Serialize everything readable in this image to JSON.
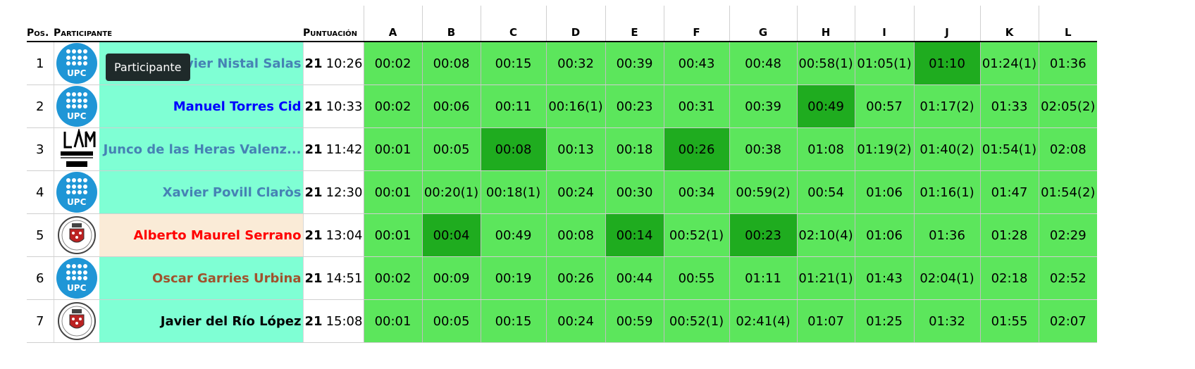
{
  "header": {
    "pos": "Pos.",
    "participant": "Participante",
    "score": "Puntuación",
    "problems": [
      "A",
      "B",
      "C",
      "D",
      "E",
      "F",
      "G",
      "H",
      "I",
      "J",
      "K",
      "L"
    ]
  },
  "tooltip": "Participante",
  "colors": {
    "solved": "#5ce65c",
    "first_solved": "#1fac1f",
    "upc_blue": "#1f96d6",
    "name_bg_green": "#7fffd4",
    "name_bg_beige": "#faebd7"
  },
  "rows": [
    {
      "pos": "1",
      "logo": "upc-logo",
      "name": "Javier Nistal Salas",
      "name_color": "#4682b4",
      "name_bg": "#7fffd4",
      "solved": "21",
      "time": "10:26",
      "cells": [
        "00:02",
        "00:08",
        "00:15",
        "00:32",
        "00:39",
        "00:43",
        "00:48",
        "00:58(1)",
        "01:05(1)",
        "01:10",
        "01:24(1)",
        "01:36"
      ],
      "first": [
        9
      ]
    },
    {
      "pos": "2",
      "logo": "upc-logo",
      "name": "Manuel Torres Cid",
      "name_color": "#0000ff",
      "name_bg": "#7fffd4",
      "solved": "21",
      "time": "10:33",
      "cells": [
        "00:02",
        "00:06",
        "00:11",
        "00:16(1)",
        "00:23",
        "00:31",
        "00:39",
        "00:49",
        "00:57",
        "01:17(2)",
        "01:33",
        "02:05(2)"
      ],
      "first": [
        7
      ]
    },
    {
      "pos": "3",
      "logo": "uam-logo",
      "name": "Junco de las Heras Valenz...",
      "name_color": "#4682b4",
      "name_bg": "#7fffd4",
      "solved": "21",
      "time": "11:42",
      "cells": [
        "00:01",
        "00:05",
        "00:08",
        "00:13",
        "00:18",
        "00:26",
        "00:38",
        "01:08",
        "01:19(2)",
        "01:40(2)",
        "01:54(1)",
        "02:08"
      ],
      "first": [
        2,
        5
      ]
    },
    {
      "pos": "4",
      "logo": "upc-logo",
      "name": "Xavier Povill Claròs",
      "name_color": "#4682b4",
      "name_bg": "#7fffd4",
      "solved": "21",
      "time": "12:30",
      "cells": [
        "00:01",
        "00:20(1)",
        "00:18(1)",
        "00:24",
        "00:30",
        "00:34",
        "00:59(2)",
        "00:54",
        "01:06",
        "01:16(1)",
        "01:47",
        "01:54(2)"
      ],
      "first": []
    },
    {
      "pos": "5",
      "logo": "ucm-logo",
      "name": "Alberto Maurel Serrano",
      "name_color": "#ff0000",
      "name_bg": "#faebd7",
      "solved": "21",
      "time": "13:04",
      "cells": [
        "00:01",
        "00:04",
        "00:49",
        "00:08",
        "00:14",
        "00:52(1)",
        "00:23",
        "02:10(4)",
        "01:06",
        "01:36",
        "01:28",
        "02:29"
      ],
      "first": [
        1,
        4,
        6
      ]
    },
    {
      "pos": "6",
      "logo": "upc-logo",
      "name": "Oscar Garries Urbina",
      "name_color": "#a0522d",
      "name_bg": "#7fffd4",
      "solved": "21",
      "time": "14:51",
      "cells": [
        "00:02",
        "00:09",
        "00:19",
        "00:26",
        "00:44",
        "00:55",
        "01:11",
        "01:21(1)",
        "01:43",
        "02:04(1)",
        "02:18",
        "02:52"
      ],
      "first": []
    },
    {
      "pos": "7",
      "logo": "ucm-logo",
      "name": "Javier del Río López",
      "name_color": "#000000",
      "name_bg": "#7fffd4",
      "solved": "21",
      "time": "15:08",
      "cells": [
        "00:01",
        "00:05",
        "00:15",
        "00:24",
        "00:59",
        "00:52(1)",
        "02:41(4)",
        "01:07",
        "01:25",
        "01:32",
        "01:55",
        "02:07"
      ],
      "first": []
    }
  ]
}
